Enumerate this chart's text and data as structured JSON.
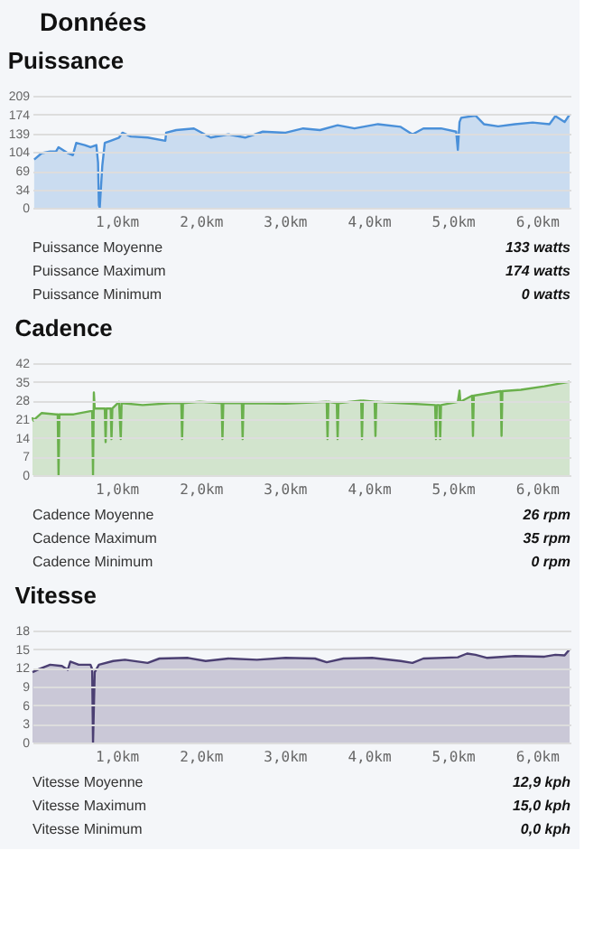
{
  "chart_data": [
    {
      "type": "other",
      "title": "Données"
    },
    {
      "type": "area",
      "title": "Puissance",
      "color": "#4a90d9",
      "grid": "y",
      "xlim": [
        0,
        6.4
      ],
      "ylim": [
        0,
        209
      ],
      "yticks": [
        0,
        34,
        69,
        104,
        139,
        174,
        209
      ],
      "xticks": [
        {
          "value": 1,
          "label": "1,0km"
        },
        {
          "value": 2,
          "label": "2,0km"
        },
        {
          "value": 3,
          "label": "3,0km"
        },
        {
          "value": 4,
          "label": "4,0km"
        },
        {
          "value": 5,
          "label": "5,0km"
        },
        {
          "value": 6,
          "label": "6,0km"
        }
      ],
      "x": [
        0.02,
        0.11,
        0.21,
        0.28,
        0.31,
        0.42,
        0.48,
        0.52,
        0.62,
        0.69,
        0.76,
        0.78,
        0.79,
        0.8,
        0.83,
        0.86,
        0.93,
        1.03,
        1.07,
        1.17,
        1.37,
        1.58,
        1.59,
        1.71,
        1.92,
        2.12,
        2.33,
        2.53,
        2.74,
        3.01,
        3.22,
        3.42,
        3.63,
        3.83,
        4.11,
        4.38,
        4.52,
        4.65,
        4.86,
        5.04,
        5.06,
        5.08,
        5.1,
        5.27,
        5.37,
        5.54,
        5.74,
        5.95,
        6.15,
        6.22,
        6.33,
        6.39
      ],
      "values": [
        90,
        102,
        105,
        105,
        113,
        102,
        98,
        121,
        117,
        113,
        117,
        84,
        5,
        0,
        78,
        121,
        125,
        131,
        140,
        133,
        131,
        125,
        140,
        145,
        148,
        131,
        137,
        131,
        142,
        140,
        148,
        145,
        154,
        148,
        156,
        151,
        137,
        148,
        148,
        142,
        108,
        160,
        168,
        172,
        156,
        152,
        156,
        159,
        156,
        171,
        160,
        174
      ],
      "annotations": [
        "Puissance Moyenne",
        "133 watts",
        "Puissance Maximum",
        "174 watts",
        "Puissance Minimum",
        "0 watts"
      ]
    },
    {
      "type": "area",
      "title": "Cadence",
      "color": "#6ab04c",
      "grid": "y",
      "xlim": [
        0,
        6.4
      ],
      "ylim": [
        0,
        42
      ],
      "yticks": [
        0,
        7,
        14,
        21,
        28,
        35,
        42
      ],
      "xticks": [
        {
          "value": 1,
          "label": "1,0km"
        },
        {
          "value": 2,
          "label": "2,0km"
        },
        {
          "value": 3,
          "label": "3,0km"
        },
        {
          "value": 4,
          "label": "4,0km"
        },
        {
          "value": 5,
          "label": "5,0km"
        },
        {
          "value": 6,
          "label": "6,0km"
        }
      ],
      "x": [
        0.0,
        0.01,
        0.11,
        0.28,
        0.3,
        0.31,
        0.32,
        0.49,
        0.69,
        0.71,
        0.72,
        0.73,
        0.74,
        0.79,
        0.86,
        0.87,
        0.88,
        0.93,
        0.94,
        0.95,
        1.03,
        1.05,
        1.06,
        1.31,
        1.65,
        1.77,
        1.78,
        1.79,
        1.99,
        2.25,
        2.26,
        2.27,
        2.49,
        2.5,
        2.51,
        3.01,
        3.5,
        3.51,
        3.52,
        3.62,
        3.63,
        3.64,
        3.91,
        3.92,
        3.93,
        4.07,
        4.08,
        4.09,
        4.38,
        4.79,
        4.8,
        4.81,
        4.84,
        4.85,
        4.86,
        5.06,
        5.08,
        5.09,
        5.23,
        5.24,
        5.25,
        5.57,
        5.58,
        5.59,
        5.81,
        6.09,
        6.39
      ],
      "values": [
        21.7,
        20.5,
        23.3,
        22.8,
        22.8,
        0,
        22.8,
        22.8,
        24,
        24,
        0,
        31,
        25,
        25,
        25,
        12.4,
        25,
        25,
        13.5,
        25,
        27.5,
        13.5,
        27,
        26.3,
        27,
        27,
        13.5,
        27,
        27.5,
        27,
        13.5,
        27,
        27,
        13.5,
        27,
        26.8,
        27.5,
        13.5,
        27.5,
        27,
        13.5,
        27,
        28,
        13.5,
        28,
        27.5,
        14.7,
        27.5,
        27,
        26.3,
        13.5,
        26.3,
        26.3,
        13.5,
        26.3,
        27.5,
        31.7,
        27.5,
        29.8,
        14.7,
        29.8,
        31.5,
        14.7,
        31.5,
        32,
        33.3,
        35
      ],
      "annotations": [
        "Cadence Moyenne",
        "26 rpm",
        "Cadence Maximum",
        "35 rpm",
        "Cadence Minimum",
        "0 rpm"
      ]
    },
    {
      "type": "area",
      "title": "Vitesse",
      "color": "#4b3f72",
      "grid": "y",
      "xlim": [
        0,
        6.4
      ],
      "ylim": [
        0,
        18
      ],
      "yticks": [
        0,
        3,
        6,
        9,
        12,
        15,
        18
      ],
      "xticks": [
        {
          "value": 1,
          "label": "1,0km"
        },
        {
          "value": 2,
          "label": "2,0km"
        },
        {
          "value": 3,
          "label": "3,0km"
        },
        {
          "value": 4,
          "label": "4,0km"
        },
        {
          "value": 5,
          "label": "5,0km"
        },
        {
          "value": 6,
          "label": "6,0km"
        }
      ],
      "x": [
        0.0,
        0.08,
        0.21,
        0.35,
        0.42,
        0.45,
        0.55,
        0.69,
        0.71,
        0.72,
        0.74,
        0.79,
        0.96,
        1.1,
        1.37,
        1.51,
        1.85,
        2.06,
        2.33,
        2.67,
        3.01,
        3.36,
        3.5,
        3.7,
        4.04,
        4.38,
        4.52,
        4.65,
        5.06,
        5.17,
        5.27,
        5.41,
        5.74,
        6.09,
        6.22,
        6.33,
        6.39
      ],
      "values": [
        11.3,
        11.8,
        12.5,
        12.3,
        11.7,
        13,
        12.5,
        12.5,
        11.8,
        0,
        11.3,
        12.5,
        13.1,
        13.3,
        12.8,
        13.5,
        13.6,
        13.1,
        13.5,
        13.3,
        13.6,
        13.5,
        12.9,
        13.5,
        13.6,
        13.1,
        12.8,
        13.5,
        13.7,
        14.3,
        14.1,
        13.6,
        13.9,
        13.8,
        14.1,
        14,
        15
      ],
      "annotations": [
        "Vitesse Moyenne",
        "12,9 kph",
        "Vitesse Maximum",
        "15,0 kph",
        "Vitesse Minimum",
        "0,0 kph"
      ]
    }
  ]
}
